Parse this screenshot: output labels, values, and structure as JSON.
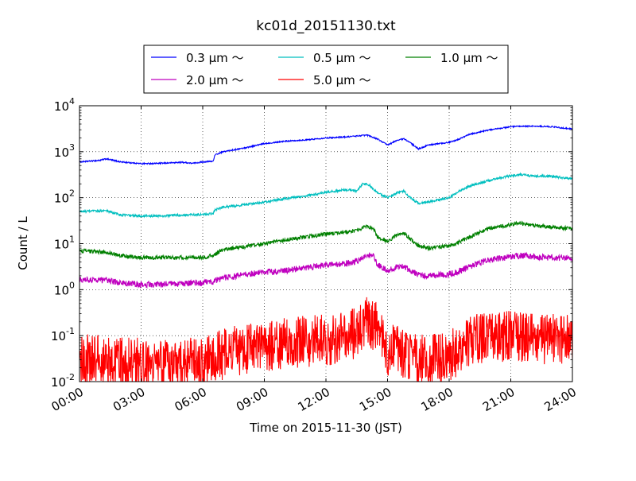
{
  "chart_data": {
    "type": "line",
    "title": "kc01d_20151130.txt",
    "xlabel": "Time on 2015-11-30 (JST)",
    "ylabel": "Count / L",
    "x_scale": "time",
    "y_scale": "log",
    "x_range_hours": [
      0,
      24
    ],
    "ylim": [
      0.01,
      10000
    ],
    "grid": true,
    "legend_position": "top-center",
    "x_ticks": [
      "00:00",
      "03:00",
      "06:00",
      "09:00",
      "12:00",
      "15:00",
      "18:00",
      "21:00",
      "24:00"
    ],
    "y_tick_exponents": [
      "-2",
      "-1",
      "0",
      "1",
      "2",
      "3",
      "4"
    ],
    "y_tick_base": "10",
    "series": [
      {
        "name": "0.3 μm ～",
        "color": "#0000ff",
        "noise": 0.008,
        "points": [
          [
            0,
            600
          ],
          [
            1,
            650
          ],
          [
            1.3,
            700
          ],
          [
            2,
            600
          ],
          [
            3,
            550
          ],
          [
            4,
            560
          ],
          [
            5,
            590
          ],
          [
            5.5,
            560
          ],
          [
            6,
            600
          ],
          [
            6.5,
            620
          ],
          [
            6.6,
            850
          ],
          [
            7,
            1000
          ],
          [
            8,
            1200
          ],
          [
            9,
            1500
          ],
          [
            10,
            1700
          ],
          [
            11,
            1800
          ],
          [
            12,
            2000
          ],
          [
            13,
            2100
          ],
          [
            13.5,
            2200
          ],
          [
            14,
            2300
          ],
          [
            14.5,
            1900
          ],
          [
            15,
            1400
          ],
          [
            15.5,
            1800
          ],
          [
            15.8,
            1900
          ],
          [
            16,
            1700
          ],
          [
            16.5,
            1150
          ],
          [
            17,
            1400
          ],
          [
            18,
            1600
          ],
          [
            18.5,
            1900
          ],
          [
            19,
            2400
          ],
          [
            20,
            3000
          ],
          [
            21,
            3500
          ],
          [
            22,
            3600
          ],
          [
            23,
            3500
          ],
          [
            24,
            3100
          ]
        ]
      },
      {
        "name": "0.5 μm ～",
        "color": "#00bfbf",
        "noise": 0.015,
        "points": [
          [
            0,
            50
          ],
          [
            1.3,
            52
          ],
          [
            2,
            42
          ],
          [
            3,
            40
          ],
          [
            4,
            40
          ],
          [
            5,
            42
          ],
          [
            6,
            43
          ],
          [
            6.5,
            45
          ],
          [
            6.6,
            55
          ],
          [
            7,
            62
          ],
          [
            8,
            70
          ],
          [
            9,
            80
          ],
          [
            10,
            95
          ],
          [
            11,
            110
          ],
          [
            12,
            130
          ],
          [
            13,
            150
          ],
          [
            13.5,
            140
          ],
          [
            13.8,
            200
          ],
          [
            14.1,
            190
          ],
          [
            14.5,
            130
          ],
          [
            15,
            100
          ],
          [
            15.5,
            130
          ],
          [
            15.8,
            140
          ],
          [
            16,
            110
          ],
          [
            16.5,
            75
          ],
          [
            17,
            80
          ],
          [
            18,
            100
          ],
          [
            18.5,
            140
          ],
          [
            19,
            180
          ],
          [
            20,
            240
          ],
          [
            21,
            300
          ],
          [
            21.5,
            320
          ],
          [
            22,
            300
          ],
          [
            23,
            290
          ],
          [
            24,
            260
          ]
        ]
      },
      {
        "name": "1.0 μm ～",
        "color": "#008000",
        "noise": 0.025,
        "points": [
          [
            0,
            7
          ],
          [
            1.3,
            6.5
          ],
          [
            2,
            5.5
          ],
          [
            3,
            5
          ],
          [
            4,
            5
          ],
          [
            5,
            5
          ],
          [
            6,
            5
          ],
          [
            6.5,
            5.5
          ],
          [
            7,
            7.5
          ],
          [
            8,
            8.5
          ],
          [
            9,
            10
          ],
          [
            10,
            12
          ],
          [
            11,
            14
          ],
          [
            12,
            16
          ],
          [
            13,
            18
          ],
          [
            13.5,
            19
          ],
          [
            14,
            24
          ],
          [
            14.3,
            22
          ],
          [
            14.5,
            14
          ],
          [
            15,
            11
          ],
          [
            15.5,
            16
          ],
          [
            15.8,
            17
          ],
          [
            16,
            14
          ],
          [
            16.5,
            9
          ],
          [
            17,
            8
          ],
          [
            18,
            9
          ],
          [
            18.5,
            11
          ],
          [
            19,
            14
          ],
          [
            20,
            22
          ],
          [
            21,
            26
          ],
          [
            21.5,
            28
          ],
          [
            22,
            25
          ],
          [
            23,
            23
          ],
          [
            24,
            21
          ]
        ]
      },
      {
        "name": "2.0 μm ～",
        "color": "#bf00bf",
        "noise": 0.04,
        "points": [
          [
            0,
            1.7
          ],
          [
            1.3,
            1.6
          ],
          [
            2,
            1.4
          ],
          [
            3,
            1.3
          ],
          [
            4,
            1.3
          ],
          [
            5,
            1.35
          ],
          [
            6,
            1.4
          ],
          [
            6.5,
            1.5
          ],
          [
            7,
            1.8
          ],
          [
            8,
            2.1
          ],
          [
            9,
            2.4
          ],
          [
            10,
            2.6
          ],
          [
            11,
            3
          ],
          [
            12,
            3.4
          ],
          [
            13,
            3.7
          ],
          [
            13.5,
            4.2
          ],
          [
            14,
            5.8
          ],
          [
            14.3,
            5.5
          ],
          [
            14.5,
            3.5
          ],
          [
            15,
            2.6
          ],
          [
            15.5,
            3.1
          ],
          [
            15.8,
            3.2
          ],
          [
            16,
            2.8
          ],
          [
            16.5,
            2.1
          ],
          [
            17,
            2
          ],
          [
            18,
            2.1
          ],
          [
            18.5,
            2.5
          ],
          [
            19,
            3.2
          ],
          [
            20,
            4.5
          ],
          [
            21,
            5.2
          ],
          [
            21.5,
            5.5
          ],
          [
            22,
            5.2
          ],
          [
            23,
            5
          ],
          [
            24,
            4.8
          ]
        ]
      },
      {
        "name": "5.0 μm ～",
        "color": "#ff0000",
        "noise": 0.33,
        "points": [
          [
            0,
            0.03
          ],
          [
            1,
            0.03
          ],
          [
            2,
            0.025
          ],
          [
            3,
            0.025
          ],
          [
            4,
            0.025
          ],
          [
            5,
            0.025
          ],
          [
            6,
            0.025
          ],
          [
            6.5,
            0.03
          ],
          [
            7,
            0.04
          ],
          [
            8,
            0.05
          ],
          [
            9,
            0.06
          ],
          [
            10,
            0.07
          ],
          [
            11,
            0.075
          ],
          [
            12,
            0.08
          ],
          [
            13,
            0.09
          ],
          [
            13.5,
            0.12
          ],
          [
            14,
            0.22
          ],
          [
            14.5,
            0.15
          ],
          [
            15,
            0.05
          ],
          [
            16,
            0.04
          ],
          [
            16.5,
            0.03
          ],
          [
            17,
            0.03
          ],
          [
            18,
            0.035
          ],
          [
            18.5,
            0.05
          ],
          [
            19,
            0.08
          ],
          [
            20,
            0.09
          ],
          [
            21,
            0.1
          ],
          [
            22,
            0.09
          ],
          [
            23,
            0.085
          ],
          [
            24,
            0.08
          ]
        ]
      }
    ]
  }
}
